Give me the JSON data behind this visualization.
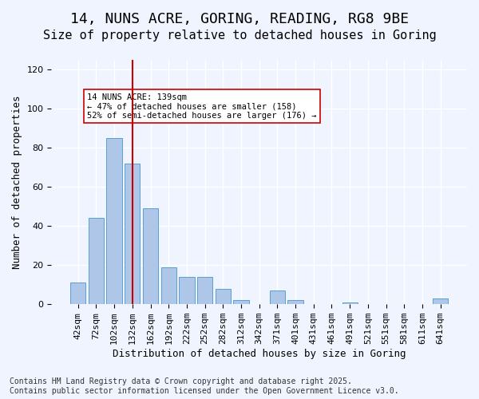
{
  "title1": "14, NUNS ACRE, GORING, READING, RG8 9BE",
  "title2": "Size of property relative to detached houses in Goring",
  "xlabel": "Distribution of detached houses by size in Goring",
  "ylabel": "Number of detached properties",
  "categories": [
    "42sqm",
    "72sqm",
    "102sqm",
    "132sqm",
    "162sqm",
    "192sqm",
    "222sqm",
    "252sqm",
    "282sqm",
    "312sqm",
    "342sqm",
    "371sqm",
    "401sqm",
    "431sqm",
    "461sqm",
    "491sqm",
    "521sqm",
    "551sqm",
    "581sqm",
    "611sqm",
    "641sqm"
  ],
  "values": [
    11,
    44,
    85,
    72,
    49,
    19,
    14,
    14,
    8,
    2,
    0,
    7,
    2,
    0,
    0,
    1,
    0,
    0,
    0,
    0,
    3
  ],
  "bar_color": "#aec6e8",
  "bar_edge_color": "#5a9fd4",
  "vline_x": 3,
  "vline_color": "#cc0000",
  "annotation_text": "14 NUNS ACRE: 139sqm\n← 47% of detached houses are smaller (158)\n52% of semi-detached houses are larger (176) →",
  "annotation_box_color": "#ffffff",
  "annotation_box_edge": "#cc0000",
  "footnote": "Contains HM Land Registry data © Crown copyright and database right 2025.\nContains public sector information licensed under the Open Government Licence v3.0.",
  "ylim": [
    0,
    125
  ],
  "yticks": [
    0,
    20,
    40,
    60,
    80,
    100,
    120
  ],
  "bg_color": "#f0f4ff",
  "grid_color": "#ffffff",
  "title_fontsize": 13,
  "subtitle_fontsize": 11,
  "axis_label_fontsize": 9,
  "tick_fontsize": 8,
  "footnote_fontsize": 7
}
